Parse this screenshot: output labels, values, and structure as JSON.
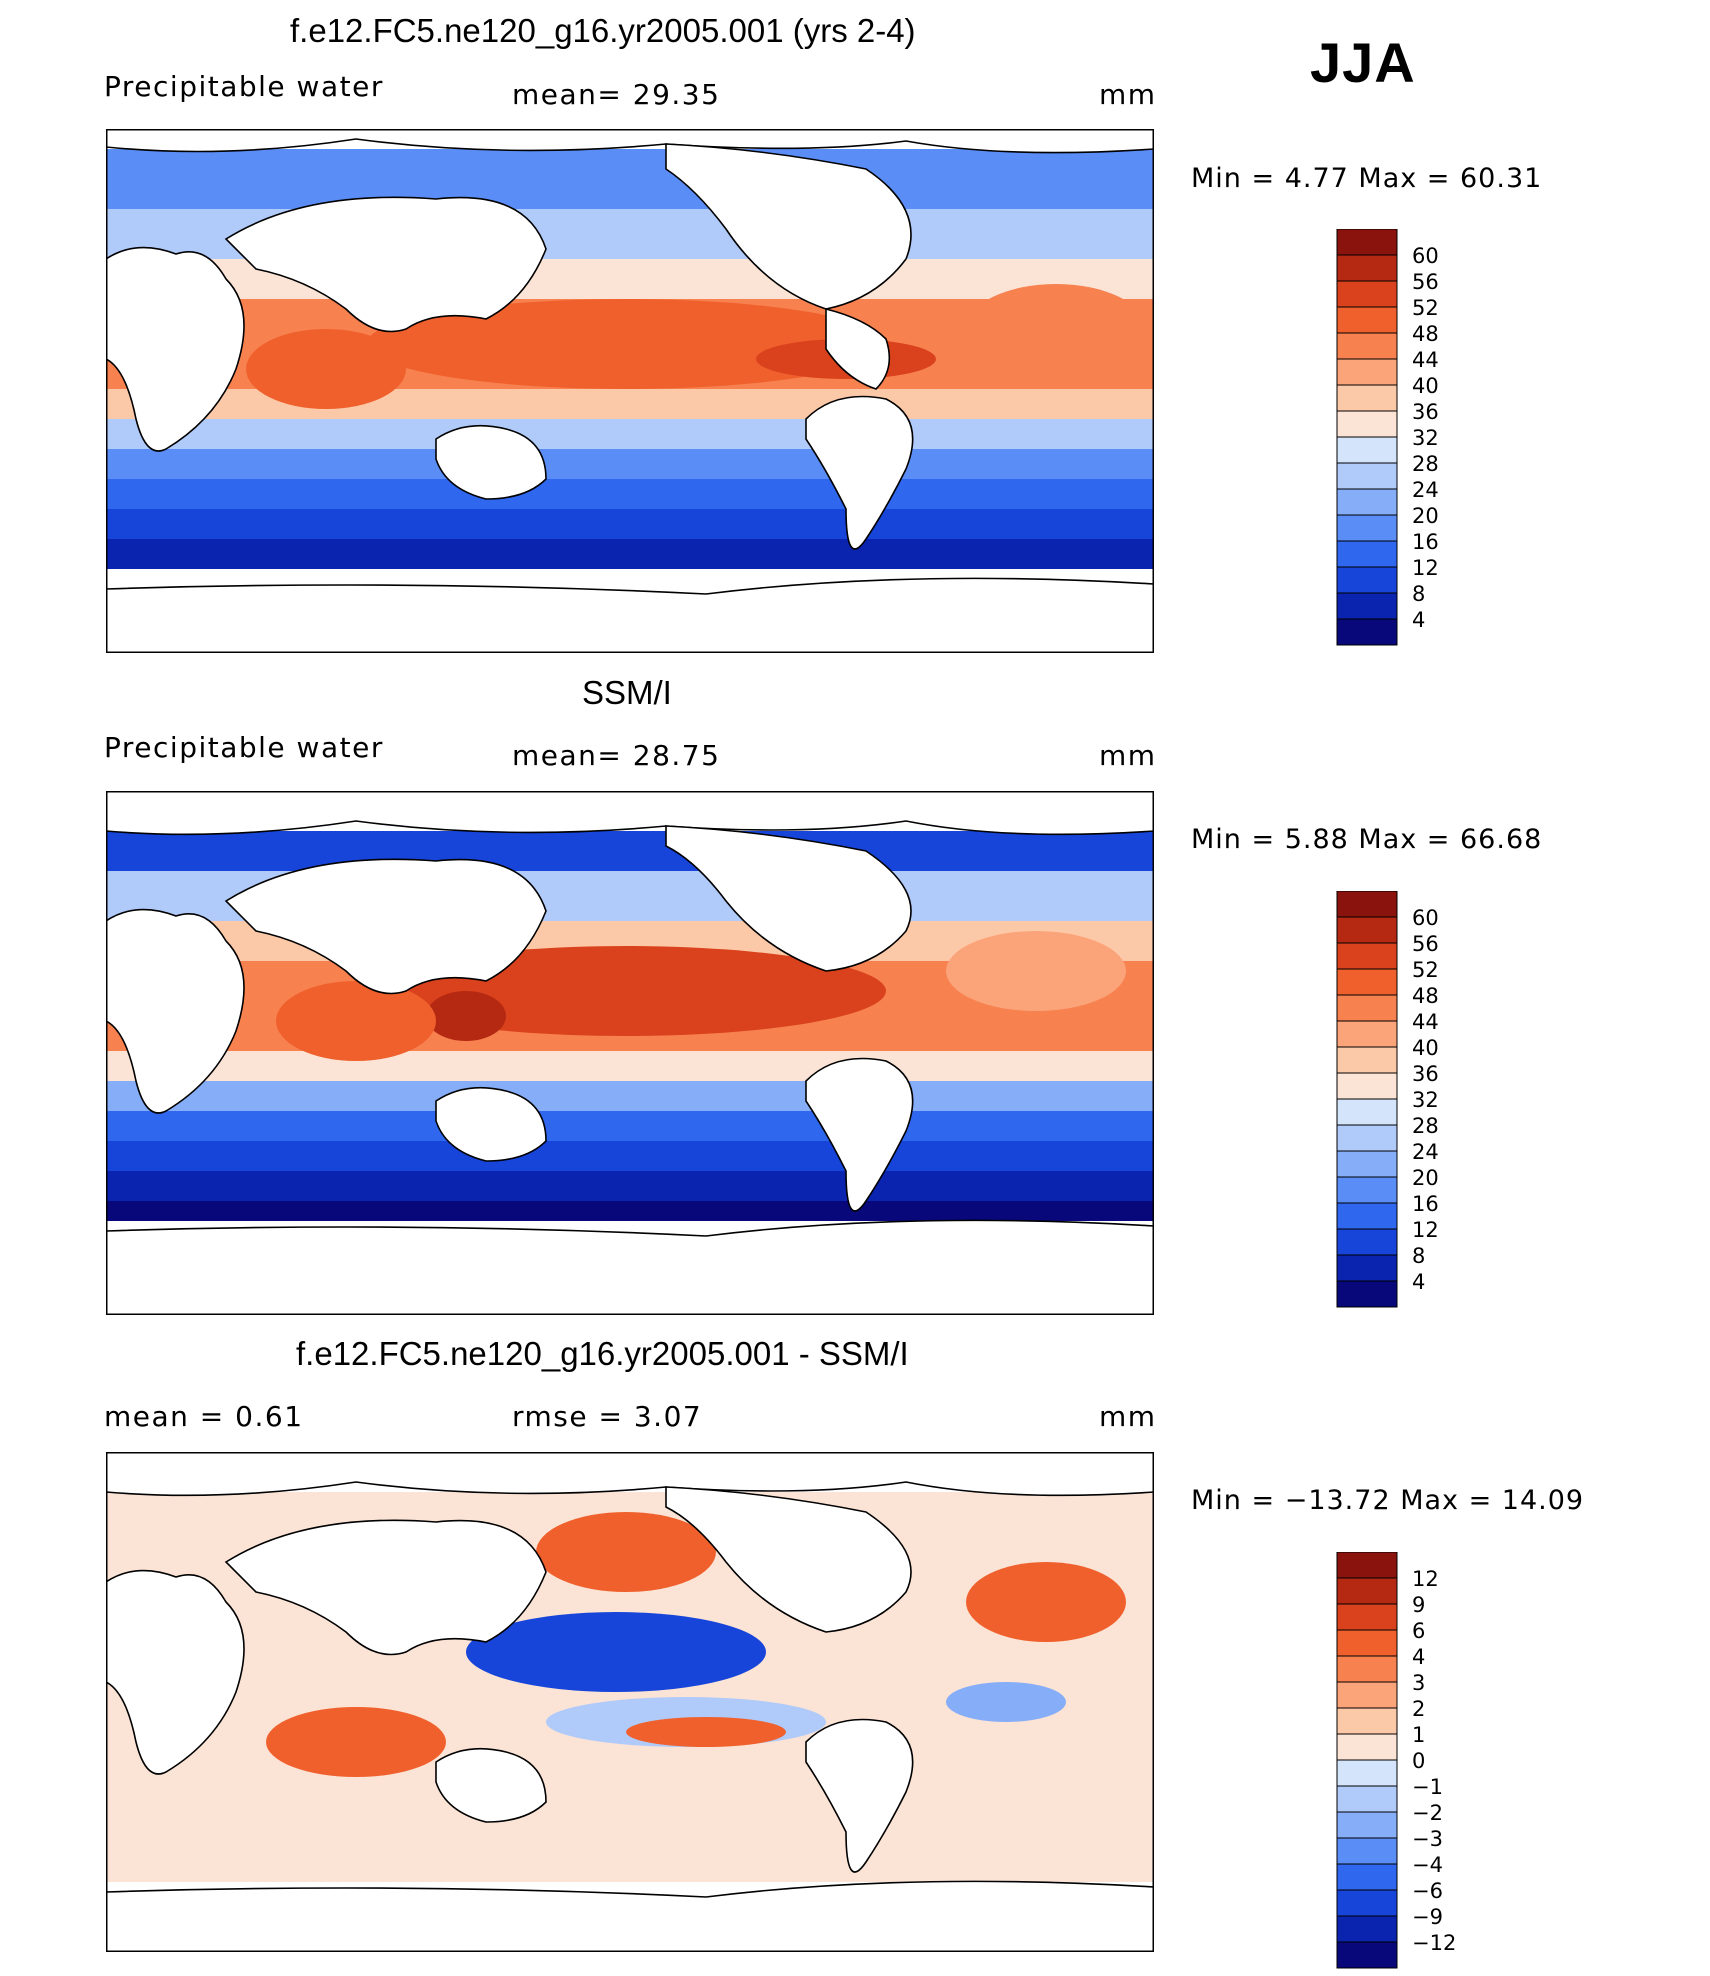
{
  "season": "JJA",
  "colors": {
    "positive_scale": [
      "#08087a",
      "#0a24b0",
      "#1745d9",
      "#2f67ee",
      "#5a8df5",
      "#86adf7",
      "#b0cafa",
      "#d4e4fb",
      "#fbe4d6",
      "#fcc9a8",
      "#fba47a",
      "#f7814f",
      "#f0602c",
      "#d9421c",
      "#b52913",
      "#8a130d"
    ],
    "diff_scale": [
      "#08087a",
      "#0a24b0",
      "#1745d9",
      "#2f67ee",
      "#5a8df5",
      "#86adf7",
      "#b0cafa",
      "#d4e4fb",
      "#fbe4d6",
      "#fcc9a8",
      "#fba47a",
      "#f7814f",
      "#f0602c",
      "#d9421c",
      "#b52913",
      "#8a130d"
    ]
  },
  "panels": [
    {
      "title": "f.e12.FC5.ne120_g16.yr2005.001 (yrs 2-4)",
      "left_label": "Precipitable water",
      "center_label": "mean=   29.35",
      "unit": "mm",
      "minmax": "Min =    4.77  Max =    60.31"
    },
    {
      "title": "SSM/I",
      "left_label": "Precipitable water",
      "center_label": "mean=   28.75",
      "unit": "mm",
      "minmax": "Min =    5.88  Max =    66.68"
    },
    {
      "title": "f.e12.FC5.ne120_g16.yr2005.001 - SSM/I",
      "left_label": "mean =    0.61",
      "center_label": "rmse =    3.07",
      "unit": "mm",
      "minmax": "Min = −13.72  Max =    14.09"
    }
  ],
  "chart_data": [
    {
      "type": "heatmap",
      "title": "f.e12.FC5.ne120_g16.yr2005.001 (yrs 2-4)",
      "variable": "Precipitable water",
      "units": "mm",
      "mean": 29.35,
      "min": 4.77,
      "max": 60.31,
      "colorbar_ticks": [
        "60",
        "56",
        "52",
        "48",
        "44",
        "40",
        "36",
        "32",
        "28",
        "24",
        "20",
        "16",
        "12",
        "8",
        "4"
      ],
      "colorbar_levels": [
        4,
        8,
        12,
        16,
        20,
        24,
        28,
        32,
        36,
        40,
        44,
        48,
        52,
        56,
        60
      ]
    },
    {
      "type": "heatmap",
      "title": "SSM/I",
      "variable": "Precipitable water",
      "units": "mm",
      "mean": 28.75,
      "min": 5.88,
      "max": 66.68,
      "colorbar_ticks": [
        "60",
        "56",
        "52",
        "48",
        "44",
        "40",
        "36",
        "32",
        "28",
        "24",
        "20",
        "16",
        "12",
        "8",
        "4"
      ],
      "colorbar_levels": [
        4,
        8,
        12,
        16,
        20,
        24,
        28,
        32,
        36,
        40,
        44,
        48,
        52,
        56,
        60
      ]
    },
    {
      "type": "heatmap",
      "title": "f.e12.FC5.ne120_g16.yr2005.001 - SSM/I",
      "units": "mm",
      "mean": 0.61,
      "rmse": 3.07,
      "min": -13.72,
      "max": 14.09,
      "colorbar_ticks": [
        "12",
        "9",
        "6",
        "4",
        "3",
        "2",
        "1",
        "0",
        "−1",
        "−2",
        "−3",
        "−4",
        "−6",
        "−9",
        "−12"
      ],
      "colorbar_levels": [
        -12,
        -9,
        -6,
        -4,
        -3,
        -2,
        -1,
        0,
        1,
        2,
        3,
        4,
        6,
        9,
        12
      ]
    }
  ]
}
